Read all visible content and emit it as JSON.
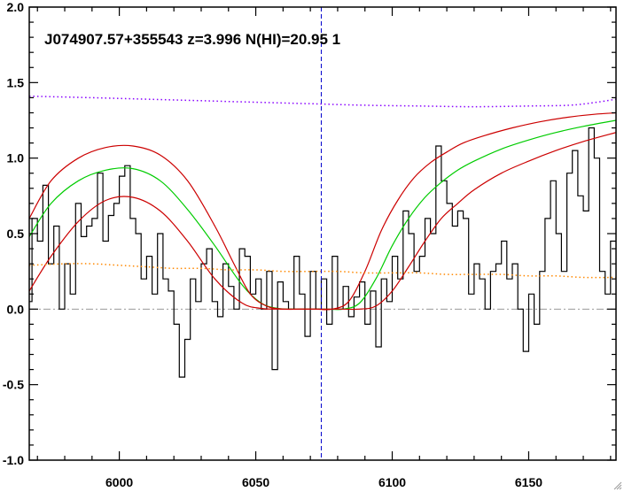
{
  "chart_data": {
    "type": "line",
    "title": "J074907.57+355543 z=3.996 N(HI)=20.95 1",
    "xlabel": "",
    "ylabel": "",
    "xlim": [
      5967,
      6182
    ],
    "ylim": [
      -1.0,
      2.0
    ],
    "x_ticks": [
      6000,
      6050,
      6100,
      6150
    ],
    "y_ticks": [
      -1.0,
      -0.5,
      0.0,
      0.5,
      1.0,
      1.5,
      2.0
    ],
    "y_tick_labels": [
      "-1.0",
      "-0.5",
      "0.0",
      "0.5",
      "1.0",
      "1.5",
      "2.0"
    ],
    "vertical_marker_x": 6074,
    "zero_line_y": 0.0,
    "grid": false,
    "colors": {
      "flux": "#000000",
      "model_best": "#00cc00",
      "model_bounds": "#cc0000",
      "continuum": "#8800ff",
      "error": "#ff8800",
      "marker": "#0000cc",
      "zero_line": "#999999"
    },
    "series": [
      {
        "kind": "flux",
        "x": [
          5967,
          5969,
          5971,
          5973,
          5975,
          5977,
          5979,
          5981,
          5983,
          5985,
          5987,
          5989,
          5991,
          5993,
          5995,
          5997,
          5999,
          6001,
          6003,
          6005,
          6007,
          6009,
          6011,
          6013,
          6015,
          6017,
          6019,
          6021,
          6023,
          6025,
          6027,
          6029,
          6031,
          6033,
          6035,
          6037,
          6039,
          6041,
          6043,
          6045,
          6047,
          6049,
          6051,
          6053,
          6055,
          6057,
          6059,
          6061,
          6063,
          6065,
          6067,
          6069,
          6071,
          6073,
          6075,
          6077,
          6079,
          6081,
          6083,
          6085,
          6087,
          6089,
          6091,
          6093,
          6095,
          6097,
          6099,
          6101,
          6103,
          6105,
          6107,
          6109,
          6111,
          6113,
          6115,
          6117,
          6119,
          6121,
          6123,
          6125,
          6127,
          6129,
          6131,
          6133,
          6135,
          6137,
          6139,
          6141,
          6143,
          6145,
          6147,
          6149,
          6151,
          6153,
          6155,
          6157,
          6159,
          6161,
          6163,
          6165,
          6167,
          6169,
          6171,
          6173,
          6175,
          6177,
          6179,
          6181
        ],
        "y": [
          0.05,
          0.6,
          0.45,
          0.82,
          0.3,
          0.55,
          0.0,
          0.3,
          0.1,
          0.7,
          0.48,
          0.55,
          0.6,
          0.9,
          0.45,
          0.62,
          0.7,
          0.88,
          0.95,
          0.6,
          0.5,
          0.2,
          0.35,
          0.1,
          0.5,
          0.2,
          0.12,
          -0.1,
          -0.45,
          -0.2,
          0.2,
          0.05,
          0.3,
          0.4,
          0.05,
          -0.05,
          0.3,
          0.15,
          0.0,
          0.4,
          0.35,
          0.1,
          0.2,
          0.0,
          0.25,
          -0.4,
          0.18,
          0.05,
          0.0,
          0.35,
          0.1,
          -0.18,
          0.25,
          0.0,
          0.2,
          -0.1,
          0.35,
          0.0,
          0.15,
          -0.05,
          0.08,
          0.18,
          -0.1,
          0.12,
          -0.25,
          0.2,
          0.05,
          0.35,
          0.2,
          0.65,
          0.5,
          0.25,
          0.35,
          0.6,
          0.5,
          1.08,
          0.85,
          0.7,
          0.55,
          0.65,
          0.6,
          0.1,
          0.3,
          0.2,
          0.0,
          0.25,
          0.3,
          0.45,
          0.2,
          0.3,
          0.0,
          -0.28,
          0.1,
          -0.1,
          0.25,
          0.6,
          0.85,
          0.5,
          0.25,
          0.9,
          1.05,
          0.75,
          0.65,
          1.2,
          1.0,
          0.25,
          0.1,
          0.45
        ]
      },
      {
        "kind": "model_best",
        "x": [
          5967,
          5975,
          5985,
          5995,
          6005,
          6015,
          6025,
          6035,
          6045,
          6052,
          6058,
          6064,
          6070,
          6076,
          6082,
          6088,
          6094,
          6100,
          6106,
          6112,
          6118,
          6124,
          6130,
          6140,
          6150,
          6160,
          6170,
          6182
        ],
        "y": [
          0.48,
          0.7,
          0.85,
          0.92,
          0.93,
          0.85,
          0.66,
          0.42,
          0.16,
          0.04,
          0.005,
          0.0,
          0.0,
          0.0,
          0.0,
          0.04,
          0.2,
          0.42,
          0.6,
          0.74,
          0.84,
          0.92,
          0.98,
          1.06,
          1.12,
          1.17,
          1.21,
          1.25
        ]
      },
      {
        "kind": "model_upper",
        "x": [
          5967,
          5975,
          5985,
          5995,
          6005,
          6015,
          6025,
          6035,
          6042,
          6048,
          6054,
          6060,
          6066,
          6072,
          6078,
          6084,
          6090,
          6096,
          6102,
          6108,
          6114,
          6120,
          6126,
          6134,
          6144,
          6154,
          6164,
          6174,
          6182
        ],
        "y": [
          0.6,
          0.85,
          1.0,
          1.07,
          1.08,
          1.02,
          0.85,
          0.55,
          0.3,
          0.1,
          0.02,
          0.0,
          0.0,
          0.0,
          0.0,
          0.05,
          0.25,
          0.52,
          0.72,
          0.87,
          0.97,
          1.04,
          1.1,
          1.15,
          1.2,
          1.24,
          1.27,
          1.29,
          1.3
        ]
      },
      {
        "kind": "model_lower",
        "x": [
          5967,
          5975,
          5985,
          5995,
          6005,
          6015,
          6025,
          6035,
          6045,
          6052,
          6058,
          6064,
          6070,
          6076,
          6082,
          6088,
          6094,
          6100,
          6106,
          6112,
          6118,
          6124,
          6130,
          6140,
          6150,
          6160,
          6170,
          6182
        ],
        "y": [
          0.12,
          0.35,
          0.58,
          0.72,
          0.74,
          0.65,
          0.45,
          0.2,
          0.04,
          0.005,
          0.0,
          0.0,
          0.0,
          0.0,
          0.0,
          0.0,
          0.02,
          0.12,
          0.28,
          0.45,
          0.6,
          0.7,
          0.79,
          0.9,
          0.98,
          1.05,
          1.11,
          1.17
        ]
      },
      {
        "kind": "continuum",
        "x": [
          5967,
          5990,
          6010,
          6030,
          6050,
          6070,
          6090,
          6110,
          6130,
          6150,
          6165,
          6175,
          6182
        ],
        "y": [
          1.41,
          1.4,
          1.39,
          1.38,
          1.37,
          1.36,
          1.35,
          1.345,
          1.34,
          1.345,
          1.35,
          1.37,
          1.39
        ]
      },
      {
        "kind": "error",
        "x": [
          5967,
          5980,
          5990,
          6000,
          6010,
          6020,
          6030,
          6040,
          6050,
          6060,
          6070,
          6080,
          6090,
          6100,
          6110,
          6120,
          6130,
          6140,
          6150,
          6160,
          6170,
          6182
        ],
        "y": [
          0.29,
          0.3,
          0.3,
          0.29,
          0.28,
          0.27,
          0.27,
          0.26,
          0.26,
          0.25,
          0.25,
          0.25,
          0.24,
          0.24,
          0.24,
          0.23,
          0.23,
          0.23,
          0.22,
          0.22,
          0.21,
          0.21
        ]
      }
    ]
  }
}
